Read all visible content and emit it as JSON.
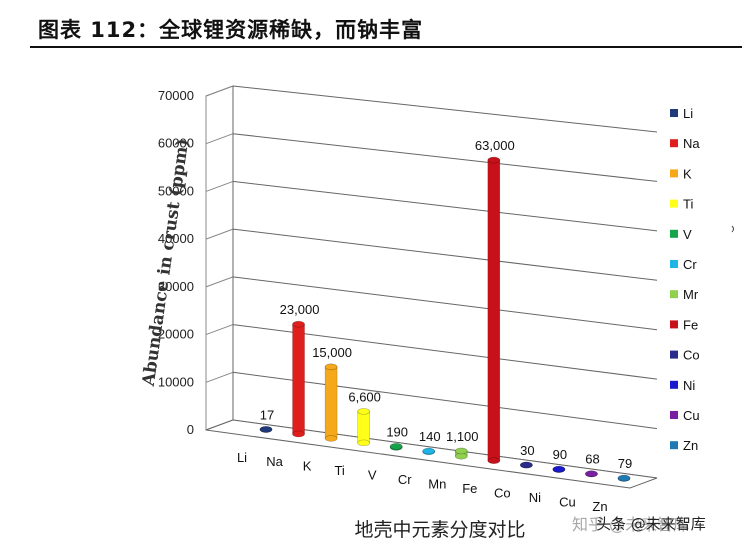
{
  "header": {
    "title": "图表 112：全球锂资源稀缺，而钠丰富"
  },
  "watermark": {
    "text": "知乎 @未来智库",
    "source": "头条 @未来智库"
  },
  "colors": {
    "Li": "#1f3a7a",
    "Na": "#e01e1e",
    "K": "#f5a81a",
    "Ti": "#ffff1a",
    "V": "#17a34a",
    "Cr": "#1fb4e6",
    "Mn": "#8fd14f",
    "Fe": "#c8101a",
    "Co": "#2a2a8a",
    "Ni": "#1a1acc",
    "Cu": "#7a1fa0",
    "Zn": "#1f7ab4"
  },
  "chart_data": {
    "type": "bar",
    "title": "",
    "xlabel": "地壳中元素分度对比",
    "ylabel": "Abundance in crust (ppm)",
    "ylim": [
      0,
      70000
    ],
    "yticks": [
      "0",
      "10000",
      "20000",
      "30000",
      "40000",
      "50000",
      "60000",
      "70000"
    ],
    "categories": [
      "Li",
      "Na",
      "K",
      "Ti",
      "V",
      "Cr",
      "Mn",
      "Fe",
      "Co",
      "Ni",
      "Cu",
      "Zn"
    ],
    "values": [
      17,
      23000,
      15000,
      6600,
      190,
      140,
      1100,
      63000,
      30,
      90,
      68,
      79
    ],
    "value_labels": [
      "17",
      "23,000",
      "15,000",
      "6,600",
      "190",
      "140",
      "1,100",
      "63,000",
      "30",
      "90",
      "68",
      "79"
    ],
    "legend": [
      "Li",
      "Na",
      "K",
      "Ti",
      "V",
      "Cr",
      "Mr",
      "Fe",
      "Co",
      "Ni",
      "Cu",
      "Zn"
    ],
    "legend_position": "right",
    "grid": true
  }
}
